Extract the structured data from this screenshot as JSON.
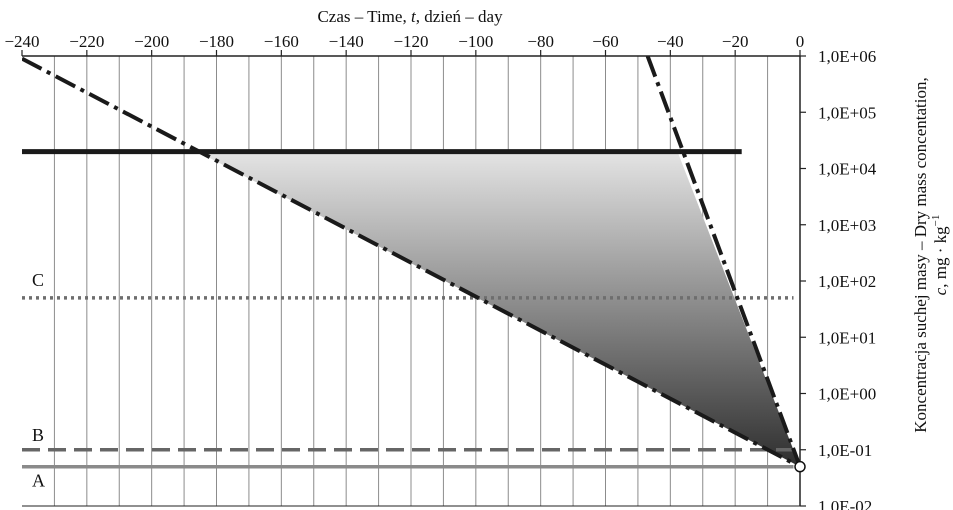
{
  "chart_data": {
    "type": "line",
    "title": "",
    "xlabel_parts": {
      "pre": "Czas – Time, ",
      "italic": "t",
      "post": ", dzień – day"
    },
    "ylabel_line1": "Koncentracja suchej masy – Dry mass concentation,",
    "ylabel_line2_parts": {
      "italic": "c",
      "post": ", mg · kg",
      "sup": "−1"
    },
    "x_axis": {
      "position": "top",
      "range": [
        -240,
        0
      ],
      "ticks": [
        -240,
        -220,
        -200,
        -180,
        -160,
        -140,
        -120,
        -100,
        -80,
        -60,
        -40,
        -20,
        0
      ],
      "tick_labels": [
        "−240",
        "−220",
        "−200",
        "−180",
        "−160",
        "−140",
        "−120",
        "−100",
        "−80",
        "−60",
        "−40",
        "−20",
        "0"
      ],
      "minor_grid_step": 10
    },
    "y_axis": {
      "position": "right",
      "scale": "log",
      "range": [
        0.01,
        1000000
      ],
      "ticks": [
        1000000,
        100000,
        10000,
        1000,
        100,
        10,
        1,
        0.1,
        0.01
      ],
      "tick_labels": [
        "1,0E+06",
        "1,0E+05",
        "1,0E+04",
        "1,0E+03",
        "1,0E+02",
        "1,0E+01",
        "1,0E+00",
        "1,0E-01",
        "1,0E-02"
      ]
    },
    "grid": "vertical",
    "series": [
      {
        "style": "solid-thick",
        "color": "#1a1a1a",
        "x": [
          -240,
          -18
        ],
        "y": [
          20000,
          20000
        ]
      },
      {
        "label": "C",
        "style": "dotted",
        "color": "#6e6e6e",
        "x": [
          -240,
          -2
        ],
        "y": [
          50,
          50
        ]
      },
      {
        "label": "B",
        "style": "dashed",
        "color": "#666666",
        "x": [
          -240,
          -2
        ],
        "y": [
          0.1,
          0.1
        ]
      },
      {
        "label": "A",
        "style": "solid",
        "color": "#8a8a8a",
        "x": [
          -240,
          -2
        ],
        "y": [
          0.05,
          0.05
        ]
      },
      {
        "style": "dash-dot",
        "color": "#1a1a1a",
        "x": [
          -240,
          0
        ],
        "y": [
          900000,
          0.05
        ]
      },
      {
        "style": "dash-dot",
        "color": "#1a1a1a",
        "x": [
          -47,
          0
        ],
        "y": [
          1000000,
          0.05
        ]
      }
    ],
    "shaded_region": {
      "description_values": "between the two dash-dot lines, below the thick line",
      "vertices": [
        [
          -185.8,
          20000
        ],
        [
          -37.8,
          20000
        ],
        [
          0,
          0.05
        ]
      ],
      "gradient": [
        "#e4e4e4",
        "#2e2e2e"
      ]
    },
    "marker": {
      "x": 0,
      "y": 0.05,
      "shape": "open-circle"
    }
  }
}
